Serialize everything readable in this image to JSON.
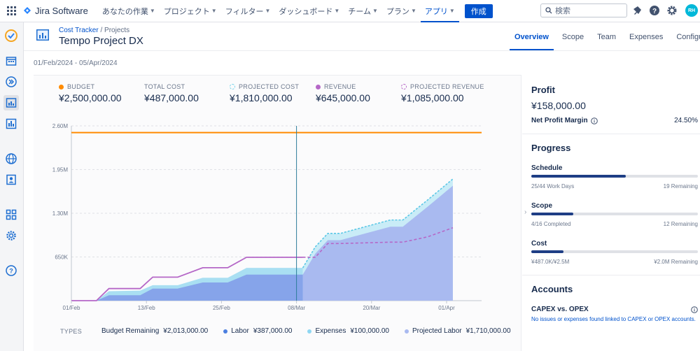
{
  "topnav": {
    "product": "Jira Software",
    "items": [
      {
        "label": "あなたの作業"
      },
      {
        "label": "プロジェクト"
      },
      {
        "label": "フィルター"
      },
      {
        "label": "ダッシュボード"
      },
      {
        "label": "チーム"
      },
      {
        "label": "プラン"
      },
      {
        "label": "アプリ"
      }
    ],
    "create_label": "作成",
    "search_placeholder": "検索",
    "avatar_initials": "RH"
  },
  "project": {
    "breadcrumb_root": "Cost Tracker",
    "breadcrumb_sep": "/",
    "breadcrumb_current": "Projects",
    "title": "Tempo Project DX",
    "tabs": [
      "Overview",
      "Scope",
      "Team",
      "Expenses",
      "Configuration"
    ],
    "active_tab": "Overview",
    "date_range": "01/Feb/2024 - 05/Apr/2024"
  },
  "metrics": [
    {
      "label": "BUDGET",
      "value": "¥2,500,000.00",
      "color": "#ff8b00",
      "marker": "dot"
    },
    {
      "label": "TOTAL COST",
      "value": "¥487,000.00",
      "color": "",
      "marker": "none"
    },
    {
      "label": "PROJECTED COST",
      "value": "¥1,810,000.00",
      "color": "#79d5ea",
      "marker": "dashed"
    },
    {
      "label": "REVENUE",
      "value": "¥645,000.00",
      "color": "#b567c7",
      "marker": "dot"
    },
    {
      "label": "PROJECTED REVENUE",
      "value": "¥1,085,000.00",
      "color": "#b567c7",
      "marker": "dashed"
    }
  ],
  "legend": {
    "types_label": "TYPES",
    "items": [
      {
        "label": "Budget Remaining",
        "amount": "¥2,013,000.00",
        "color": ""
      },
      {
        "label": "Labor",
        "amount": "¥387,000.00",
        "color": "#4c7fe0"
      },
      {
        "label": "Expenses",
        "amount": "¥100,000.00",
        "color": "#8fd7f2"
      },
      {
        "label": "Projected Labor",
        "amount": "¥1,710,000.00",
        "color": "#a9baf0"
      }
    ]
  },
  "chart_data": {
    "type": "area",
    "x_ticks": [
      "01/Feb",
      "13/Feb",
      "25/Feb",
      "08/Mar",
      "20/Mar",
      "01/Apr"
    ],
    "y_ticks": [
      "650K",
      "1.30M",
      "1.95M",
      "2.60M"
    ],
    "ylim": [
      0,
      2600000
    ],
    "today": "08/Mar",
    "x_days": [
      0,
      4,
      6,
      11,
      13,
      17,
      21,
      25,
      28,
      36,
      37,
      39,
      41,
      43,
      47,
      51,
      53,
      57,
      61
    ],
    "budget": 2500000,
    "series": [
      {
        "name": "Labor",
        "values": [
          0,
          0,
          80000,
          80000,
          180000,
          180000,
          270000,
          270000,
          387000,
          387000,
          387000,
          null,
          null,
          null,
          null,
          null,
          null,
          null,
          null
        ]
      },
      {
        "name": "Expenses",
        "values": [
          0,
          0,
          140000,
          150000,
          230000,
          230000,
          340000,
          340000,
          487000,
          487000,
          487000,
          null,
          null,
          null,
          null,
          null,
          null,
          null,
          null
        ]
      },
      {
        "name": "Revenue",
        "values": [
          0,
          0,
          180000,
          180000,
          350000,
          350000,
          490000,
          490000,
          645000,
          645000,
          645000,
          null,
          null,
          null,
          null,
          null,
          null,
          null,
          null
        ]
      },
      {
        "name": "Projected Labor",
        "values": [
          null,
          null,
          null,
          null,
          null,
          null,
          null,
          null,
          null,
          null,
          387000,
          700000,
          900000,
          900000,
          1000000,
          1100000,
          1100000,
          1400000,
          1710000
        ]
      },
      {
        "name": "Projected Cost",
        "values": [
          null,
          null,
          null,
          null,
          null,
          null,
          null,
          null,
          null,
          null,
          487000,
          800000,
          1000000,
          1000000,
          1100000,
          1200000,
          1200000,
          1500000,
          1810000
        ]
      },
      {
        "name": "Projected Revenue",
        "values": [
          null,
          null,
          null,
          null,
          null,
          null,
          null,
          null,
          null,
          null,
          645000,
          645000,
          850000,
          850000,
          860000,
          870000,
          870000,
          950000,
          1085000
        ]
      }
    ]
  },
  "profit": {
    "title": "Profit",
    "value": "¥158,000.00",
    "margin_label": "Net Profit Margin",
    "margin_value": "24.50%"
  },
  "progress": {
    "title": "Progress",
    "items": [
      {
        "label": "Schedule",
        "fraction": 0.568,
        "left": "25/44 Work Days",
        "right": "19 Remaining"
      },
      {
        "label": "Scope",
        "fraction": 0.25,
        "left": "4/16 Completed",
        "right": "12 Remaining"
      },
      {
        "label": "Cost",
        "fraction": 0.195,
        "left": "¥487.0K/¥2.5M",
        "right": "¥2.0M Remaining"
      }
    ]
  },
  "accounts": {
    "title": "Accounts",
    "subtitle": "CAPEX vs. OPEX",
    "message": "No issues or expenses found linked to CAPEX or OPEX accounts."
  }
}
